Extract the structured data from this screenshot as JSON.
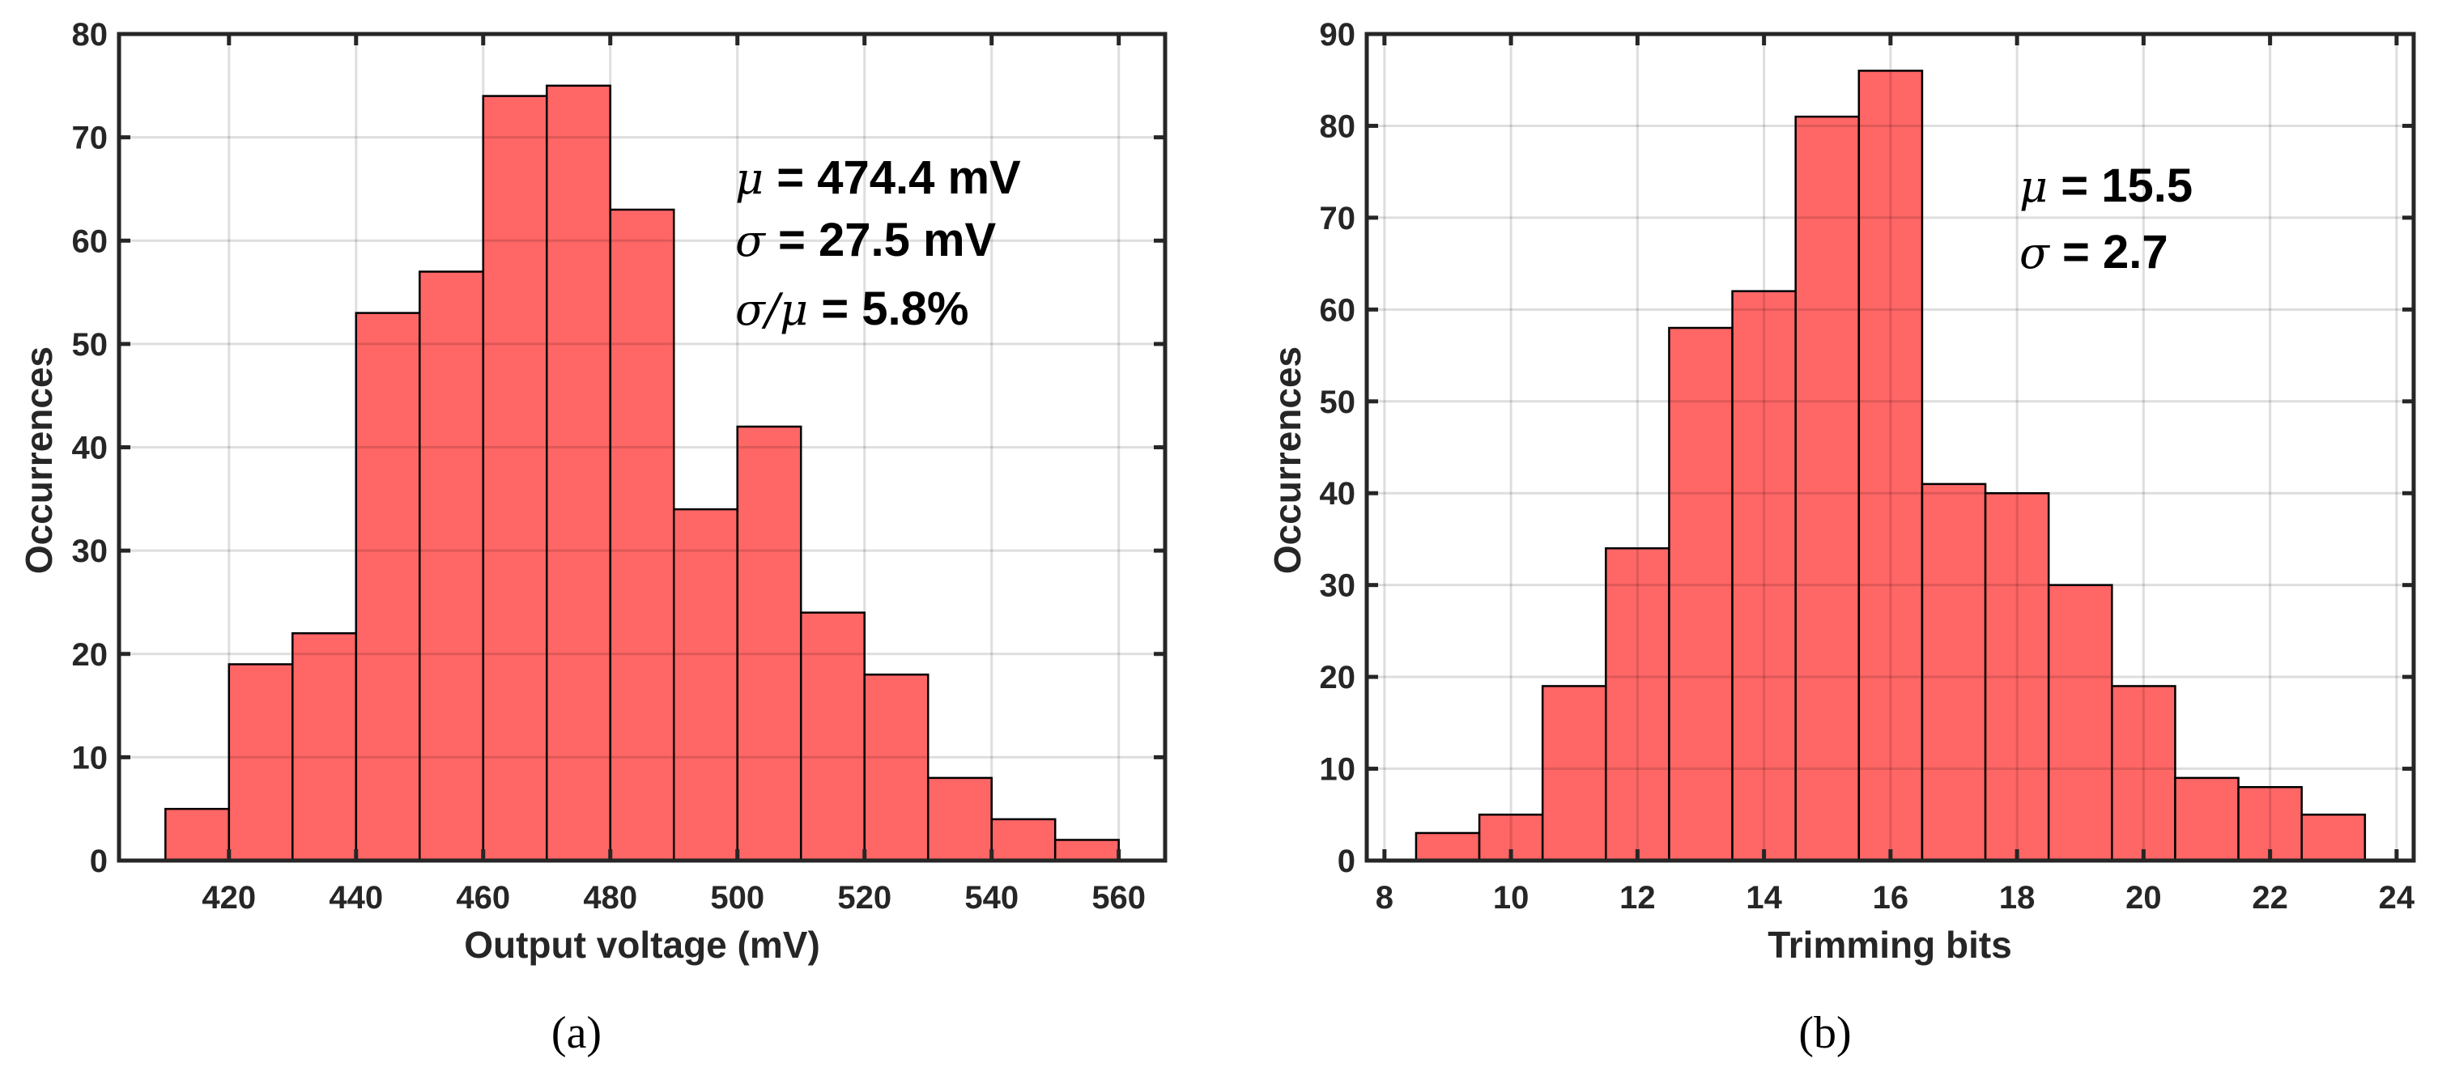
{
  "chart_data": [
    {
      "type": "bar",
      "panel": "(a)",
      "xlabel": "Output voltage (mV)",
      "ylabel": "Occurrences",
      "xlim": [
        402.7,
        567.3
      ],
      "ylim": [
        0,
        80
      ],
      "xticks": [
        420,
        440,
        460,
        480,
        500,
        520,
        540,
        560
      ],
      "yticks": [
        0,
        10,
        20,
        30,
        40,
        50,
        60,
        70,
        80
      ],
      "bin_edges": [
        410,
        420,
        430,
        440,
        450,
        460,
        470,
        480,
        490,
        500,
        510,
        520,
        530,
        540,
        550,
        560
      ],
      "values": [
        5,
        19,
        22,
        53,
        57,
        74,
        75,
        63,
        34,
        42,
        24,
        18,
        8,
        4,
        2
      ],
      "grid": true,
      "annotations": [
        {
          "symbol": "μ",
          "text": " = 474.4 mV"
        },
        {
          "symbol": "σ",
          "text": " = 27.5 mV"
        },
        {
          "symbol": "σ/μ",
          "text": " = 5.8%"
        }
      ]
    },
    {
      "type": "bar",
      "panel": "(b)",
      "xlabel": "Trimming bits",
      "ylabel": "Occurrences",
      "xlim": [
        7.72,
        24.27
      ],
      "ylim": [
        0,
        90
      ],
      "xticks": [
        8,
        10,
        12,
        14,
        16,
        18,
        20,
        22,
        24
      ],
      "yticks": [
        0,
        10,
        20,
        30,
        40,
        50,
        60,
        70,
        80,
        90
      ],
      "bin_edges": [
        8.5,
        9.5,
        10.5,
        11.5,
        12.5,
        13.5,
        14.5,
        15.5,
        16.5,
        17.5,
        18.5,
        19.5,
        20.5,
        21.5,
        22.5,
        23.5
      ],
      "values": [
        3,
        5,
        19,
        34,
        58,
        62,
        81,
        86,
        41,
        40,
        30,
        19,
        9,
        8,
        5
      ],
      "grid": true,
      "annotations": [
        {
          "symbol": "μ",
          "text": " = 15.5"
        },
        {
          "symbol": "σ",
          "text": " = 2.7"
        }
      ]
    }
  ],
  "colors": {
    "bar": "#ff5555",
    "edge": "#000000",
    "axis": "#262626",
    "grid": "#000000"
  }
}
